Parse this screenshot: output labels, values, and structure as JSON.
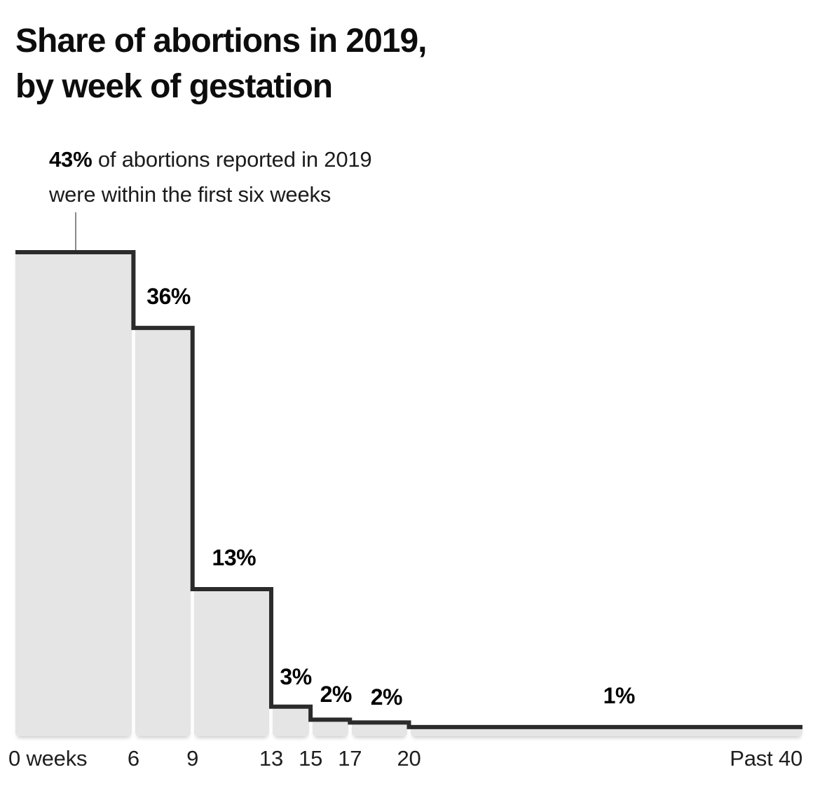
{
  "header": {
    "title_line1": "Share of abortions in 2019,",
    "title_line2": "by week of gestation"
  },
  "annotation": {
    "bold_lead": "43%",
    "text_line1": " of abortions reported in 2019",
    "text_line2": "were within the first six weeks"
  },
  "chart_data": {
    "type": "step-histogram",
    "title": "Share of abortions in 2019, by week of gestation",
    "xlabel": "week of gestation",
    "ylabel": "share of abortions (%)",
    "x_range": [
      0,
      40
    ],
    "grid": false,
    "legend": "none",
    "bins": [
      {
        "week_start": 0,
        "week_end": 6,
        "value": 43,
        "label": "43%",
        "value_precise": 43.0
      },
      {
        "week_start": 6,
        "week_end": 9,
        "value": 36,
        "label": "36%",
        "value_precise": 36.3
      },
      {
        "week_start": 9,
        "week_end": 13,
        "value": 13,
        "label": "13%",
        "value_precise": 13.2
      },
      {
        "week_start": 13,
        "week_end": 15,
        "value": 3,
        "label": "3%",
        "value_precise": 2.8
      },
      {
        "week_start": 15,
        "week_end": 17,
        "value": 2,
        "label": "2%",
        "value_precise": 1.65
      },
      {
        "week_start": 17,
        "week_end": 20,
        "value": 2,
        "label": "2%",
        "value_precise": 1.4
      },
      {
        "week_start": 20,
        "week_end": 40,
        "value": 1,
        "label": "1%",
        "value_precise": 1.0
      }
    ],
    "x_axis_ticks": [
      {
        "week": 0,
        "label": "0 weeks",
        "align": "left"
      },
      {
        "week": 6,
        "label": "6",
        "align": "center"
      },
      {
        "week": 9,
        "label": "9",
        "align": "center"
      },
      {
        "week": 13,
        "label": "13",
        "align": "center"
      },
      {
        "week": 15,
        "label": "15",
        "align": "center"
      },
      {
        "week": 17,
        "label": "17",
        "align": "center"
      },
      {
        "week": 20,
        "label": "20",
        "align": "center"
      },
      {
        "week": 40,
        "label": "Past 40",
        "align": "right"
      }
    ],
    "colors": {
      "background": "#ffffff",
      "bar_fill": "#e5e5e5",
      "step_line": "#2b2b2b",
      "title_text": "#0d0d0d",
      "label_text": "#000000",
      "axis_text": "#1f1f1f",
      "pointer_line": "#8a8a8a"
    }
  }
}
